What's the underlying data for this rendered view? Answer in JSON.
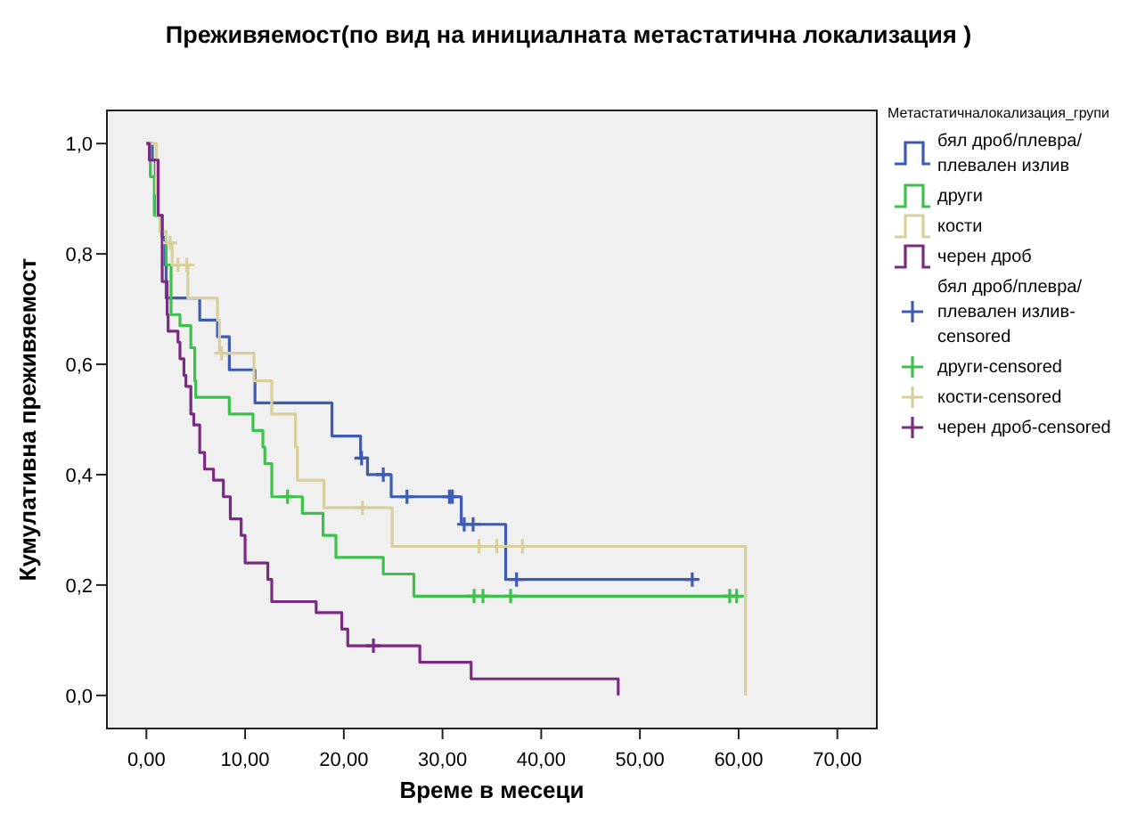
{
  "chart_data": {
    "type": "step",
    "title": "Преживяемост(по вид на инициалната метастатична локализация )",
    "xlabel": "Време в месеци",
    "ylabel": "Кумулативна преживяемост",
    "legend_title": "Метастатичналокализация_групи",
    "legend": "right",
    "grid": false,
    "xlim": [
      -4,
      74
    ],
    "ylim": [
      -0.06,
      1.06
    ],
    "xticks": [
      {
        "value": 0,
        "label": "0,00"
      },
      {
        "value": 10,
        "label": "10,00"
      },
      {
        "value": 20,
        "label": "20,00"
      },
      {
        "value": 30,
        "label": "30,00"
      },
      {
        "value": 40,
        "label": "40,00"
      },
      {
        "value": 50,
        "label": "50,00"
      },
      {
        "value": 60,
        "label": "60,00"
      },
      {
        "value": 70,
        "label": "70,00"
      }
    ],
    "yticks": [
      {
        "value": 0,
        "label": "0,0"
      },
      {
        "value": 0.2,
        "label": "0,2"
      },
      {
        "value": 0.4,
        "label": "0,4"
      },
      {
        "value": 0.6,
        "label": "0,6"
      },
      {
        "value": 0.8,
        "label": "0,8"
      },
      {
        "value": 1,
        "label": "1,0"
      }
    ],
    "series": [
      {
        "name": "бял дроб/плевра/плевален излив",
        "color": "#3d5bb5",
        "x": [
          0,
          0.6,
          0.9,
          1.6,
          1.9,
          2.0,
          5.4,
          7.2,
          8.4,
          11.0,
          18.8,
          21.7,
          22.4,
          24.8,
          31.9,
          36.4,
          55.3
        ],
        "values": [
          1.0,
          0.97,
          0.87,
          0.83,
          0.78,
          0.72,
          0.68,
          0.65,
          0.59,
          0.53,
          0.47,
          0.43,
          0.4,
          0.36,
          0.31,
          0.21,
          0.21
        ]
      },
      {
        "name": "други",
        "color": "#3cc24a",
        "x": [
          0,
          0.4,
          0.8,
          1.4,
          2.0,
          2.5,
          3.4,
          4.5,
          4.9,
          5.0,
          8.4,
          10.8,
          11.8,
          12.0,
          12.7,
          15.8,
          17.9,
          19.2,
          24.0,
          27.1,
          59.8
        ],
        "values": [
          1.0,
          0.94,
          0.87,
          0.84,
          0.78,
          0.69,
          0.67,
          0.63,
          0.57,
          0.54,
          0.51,
          0.48,
          0.45,
          0.42,
          0.36,
          0.33,
          0.29,
          0.25,
          0.22,
          0.18,
          0.18
        ]
      },
      {
        "name": "кости",
        "color": "#d8d09a",
        "x": [
          0,
          1.0,
          1.1,
          1.4,
          2.0,
          2.6,
          4.2,
          7.2,
          7.4,
          10.9,
          12.7,
          15.1,
          15.3,
          18.0,
          24.9,
          60.7
        ],
        "values": [
          1.0,
          0.91,
          0.87,
          0.84,
          0.82,
          0.78,
          0.72,
          0.68,
          0.62,
          0.57,
          0.51,
          0.45,
          0.39,
          0.34,
          0.27,
          0
        ]
      },
      {
        "name": "черен дроб",
        "color": "#7b2a82",
        "x": [
          0,
          0.3,
          1.2,
          1.6,
          2.1,
          2.2,
          3.2,
          3.4,
          3.8,
          4.0,
          4.5,
          4.8,
          5.4,
          5.9,
          6.8,
          7.8,
          8.5,
          9.6,
          10.0,
          12.3,
          12.7,
          17.2,
          19.8,
          20.4,
          27.7,
          32.9,
          47.8
        ],
        "values": [
          1.0,
          0.97,
          0.87,
          0.75,
          0.69,
          0.66,
          0.64,
          0.61,
          0.58,
          0.56,
          0.51,
          0.49,
          0.44,
          0.41,
          0.39,
          0.36,
          0.32,
          0.29,
          0.24,
          0.21,
          0.17,
          0.15,
          0.12,
          0.09,
          0.06,
          0.03,
          0
        ]
      },
      {
        "name": "бял дроб/плевра/плевален излив-censored",
        "type": "scatter",
        "marker": "cross",
        "color": "#3d5bb5",
        "x": [
          21.8,
          24.0,
          26.4,
          30.7,
          31.0,
          32.2,
          33.1,
          37.5,
          55.3
        ],
        "values": [
          0.43,
          0.4,
          0.36,
          0.36,
          0.36,
          0.31,
          0.31,
          0.21,
          0.21
        ]
      },
      {
        "name": "други-censored",
        "type": "scatter",
        "marker": "cross",
        "color": "#3cc24a",
        "x": [
          14.3,
          33.2,
          34.1,
          36.9,
          59.1,
          59.8
        ],
        "values": [
          0.36,
          0.18,
          0.18,
          0.18,
          0.18,
          0.18
        ]
      },
      {
        "name": "кости-censored",
        "type": "scatter",
        "marker": "cross",
        "color": "#d8d09a",
        "x": [
          2.4,
          3.2,
          4.1,
          7.6,
          21.9,
          33.7,
          35.5,
          38.1
        ],
        "values": [
          0.82,
          0.78,
          0.78,
          0.62,
          0.34,
          0.27,
          0.27,
          0.27
        ]
      },
      {
        "name": "черен дроб-censored",
        "type": "scatter",
        "marker": "cross",
        "color": "#7b2a82",
        "x": [
          23.0
        ],
        "values": [
          0.09
        ]
      }
    ]
  }
}
